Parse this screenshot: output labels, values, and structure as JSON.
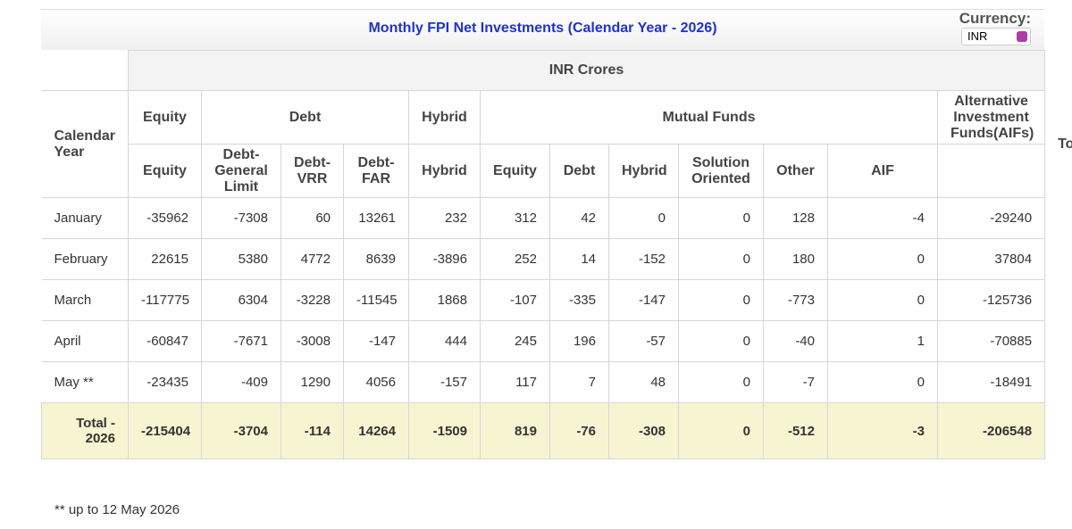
{
  "header": {
    "title": "Monthly FPI Net Investments (Calendar Year - 2026)",
    "currency_label": "Currency:",
    "currency_value": "INR"
  },
  "table": {
    "unit": "INR Crores",
    "group_headers": [
      "Calendar Year",
      "Equity",
      "Debt",
      "Hybrid",
      "Mutual Funds",
      "Alternative Investment Funds(AIFs)",
      "Total"
    ],
    "sub_headers": [
      "Equity",
      "Debt-General Limit",
      "Debt-VRR",
      "Debt-FAR",
      "Hybrid",
      "Equity",
      "Debt",
      "Hybrid",
      "Solution Oriented",
      "Other",
      "AIF"
    ],
    "rows": [
      [
        "January",
        -35962,
        -7308,
        60,
        13261,
        232,
        312,
        42,
        0,
        0,
        128,
        -4,
        -29240
      ],
      [
        "February",
        22615,
        5380,
        4772,
        8639,
        -3896,
        252,
        14,
        -152,
        0,
        180,
        0,
        37804
      ],
      [
        "March",
        -117775,
        6304,
        -3228,
        -11545,
        1868,
        -107,
        -335,
        -147,
        0,
        -773,
        0,
        -125736
      ],
      [
        "April",
        -60847,
        -7671,
        -3008,
        -147,
        444,
        245,
        196,
        -57,
        0,
        -40,
        1,
        -70885
      ],
      [
        "May **",
        -23435,
        -409,
        1290,
        4056,
        -157,
        117,
        7,
        48,
        0,
        -7,
        0,
        -18491
      ]
    ],
    "total_row": [
      "Total - 2026",
      -215404,
      -3704,
      -114,
      14264,
      -1509,
      819,
      -76,
      -308,
      0,
      -512,
      -3,
      -206548
    ]
  },
  "footnote": "** up to 12 May 2026"
}
